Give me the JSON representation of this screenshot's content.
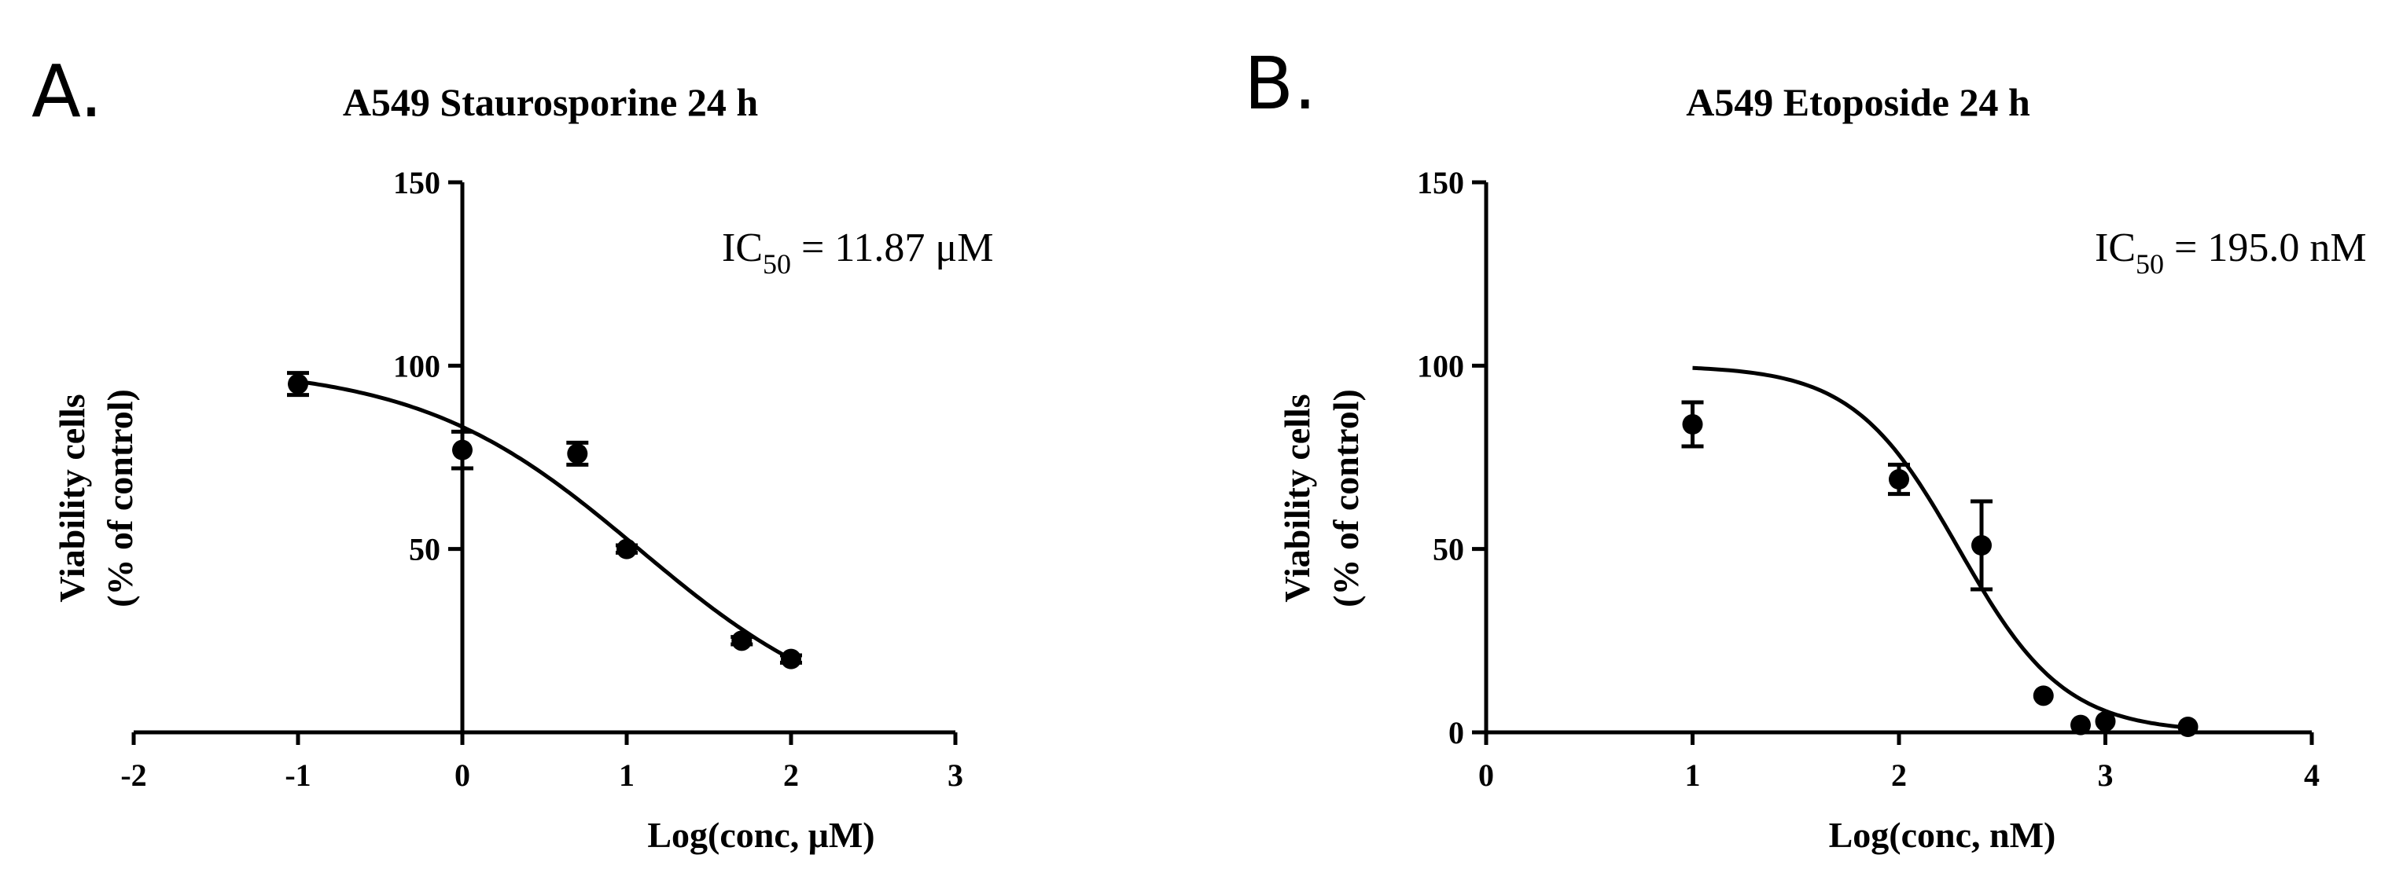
{
  "panels": [
    {
      "letter": "A.",
      "annotation": {
        "main": "IC",
        "sub": "50",
        "rest": " = 11.87 μM"
      }
    },
    {
      "letter": "B.",
      "annotation": {
        "main": "IC",
        "sub": "50",
        "rest": " = 195.0 nM"
      }
    }
  ],
  "chart_data": [
    {
      "type": "scatter",
      "title": "A549 Staurosporine 24 h",
      "xlabel": "Log(conc, μM)",
      "ylabel_line1": "Viability cells",
      "ylabel_line2": "(% of control)",
      "xlim": [
        -2,
        3
      ],
      "ylim": [
        0,
        150
      ],
      "x_ticks": [
        -2,
        -1,
        0,
        1,
        2,
        3
      ],
      "x_tick_labels": [
        "-2",
        "-1",
        "0",
        "1",
        "2",
        "3"
      ],
      "y_ticks": [
        50,
        100,
        150
      ],
      "y_tick_labels": [
        "50",
        "100",
        "150"
      ],
      "y_axis_crosses_x": 0,
      "grid": false,
      "points": [
        {
          "x": -1,
          "y": 95,
          "err": 3
        },
        {
          "x": 0,
          "y": 77,
          "err": 5
        },
        {
          "x": 0.7,
          "y": 76,
          "err": 3
        },
        {
          "x": 1,
          "y": 50,
          "err": 1
        },
        {
          "x": 1.7,
          "y": 25,
          "err": 1
        },
        {
          "x": 2,
          "y": 20,
          "err": 1
        }
      ],
      "fit": {
        "top": 100,
        "bottom": 0,
        "log_ic50": 1.074,
        "hill": -0.65,
        "x_range": [
          -1,
          2
        ]
      }
    },
    {
      "type": "scatter",
      "title": "A549 Etoposide 24 h",
      "xlabel": "Log(conc, nM)",
      "ylabel_line1": "Viability cells",
      "ylabel_line2": "(% of control)",
      "xlim": [
        0,
        4
      ],
      "ylim": [
        0,
        150
      ],
      "x_ticks": [
        0,
        1,
        2,
        3,
        4
      ],
      "x_tick_labels": [
        "0",
        "1",
        "2",
        "3",
        "4"
      ],
      "y_ticks": [
        0,
        50,
        100,
        150
      ],
      "y_tick_labels": [
        "0",
        "50",
        "100",
        "150"
      ],
      "y_axis_crosses_x": 0,
      "grid": false,
      "points": [
        {
          "x": 1,
          "y": 84,
          "err": 6
        },
        {
          "x": 2,
          "y": 69,
          "err": 4
        },
        {
          "x": 2.4,
          "y": 51,
          "err": 12
        },
        {
          "x": 2.7,
          "y": 10,
          "err": 0
        },
        {
          "x": 2.88,
          "y": 2,
          "err": 0
        },
        {
          "x": 3,
          "y": 3,
          "err": 0
        },
        {
          "x": 3.4,
          "y": 1.5,
          "err": 0
        }
      ],
      "fit": {
        "top": 100,
        "bottom": 0,
        "log_ic50": 2.29,
        "hill": -1.7,
        "x_range": [
          1,
          3.4
        ]
      }
    }
  ]
}
